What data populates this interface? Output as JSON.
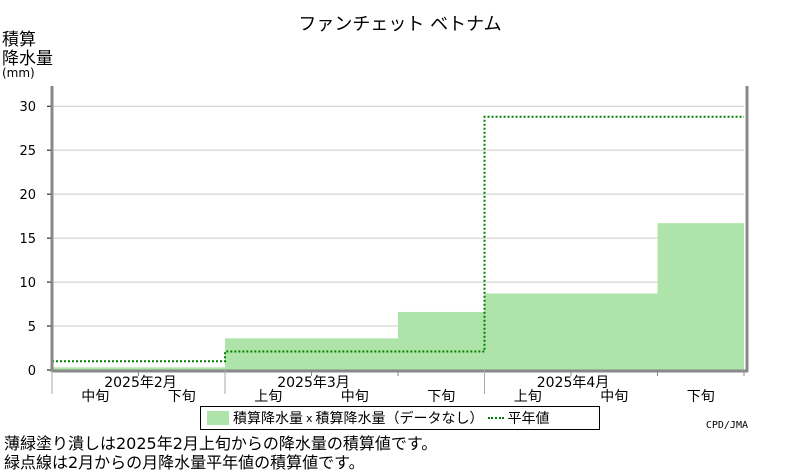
{
  "header": {
    "title": "ファンチェット ベトナム",
    "ylabel_line1": "積算",
    "ylabel_line2": "降水量",
    "ylabel_unit": "(mm)"
  },
  "chart_data": {
    "type": "area",
    "title": "ファンチェット ベトナム",
    "ylabel": "積算降水量 (mm)",
    "ylim": [
      0,
      30
    ],
    "yticks": [
      0,
      5,
      10,
      15,
      20,
      25,
      30
    ],
    "periods": [
      "中旬",
      "下旬",
      "上旬",
      "中旬",
      "下旬",
      "上旬",
      "中旬",
      "下旬"
    ],
    "month_labels": [
      {
        "label": "2025年2月",
        "start_index": 0
      },
      {
        "label": "2025年3月",
        "start_index": 2
      },
      {
        "label": "2025年4月",
        "start_index": 5
      }
    ],
    "series": [
      {
        "name": "積算降水量",
        "values": [
          0.3,
          0.3,
          3.6,
          3.6,
          6.6,
          8.7,
          8.7,
          16.7
        ],
        "color": "#aee3a9"
      },
      {
        "name": "平年値",
        "values": [
          1.0,
          1.0,
          2.1,
          2.1,
          2.1,
          28.8,
          28.8,
          28.8
        ],
        "color": "#008000"
      }
    ],
    "no_data_marker": "x",
    "grid": true
  },
  "legend": {
    "actual_label": "積算降水量",
    "nodata_label": "積算降水量（データなし）",
    "normal_label": "平年値",
    "nodata_marker": "x"
  },
  "credit": "CPD/JMA",
  "notes": [
    "薄緑塗り潰しは2025年2月上旬からの降水量の積算値です。",
    "緑点線は2月からの月降水量平年値の積算値です。"
  ]
}
